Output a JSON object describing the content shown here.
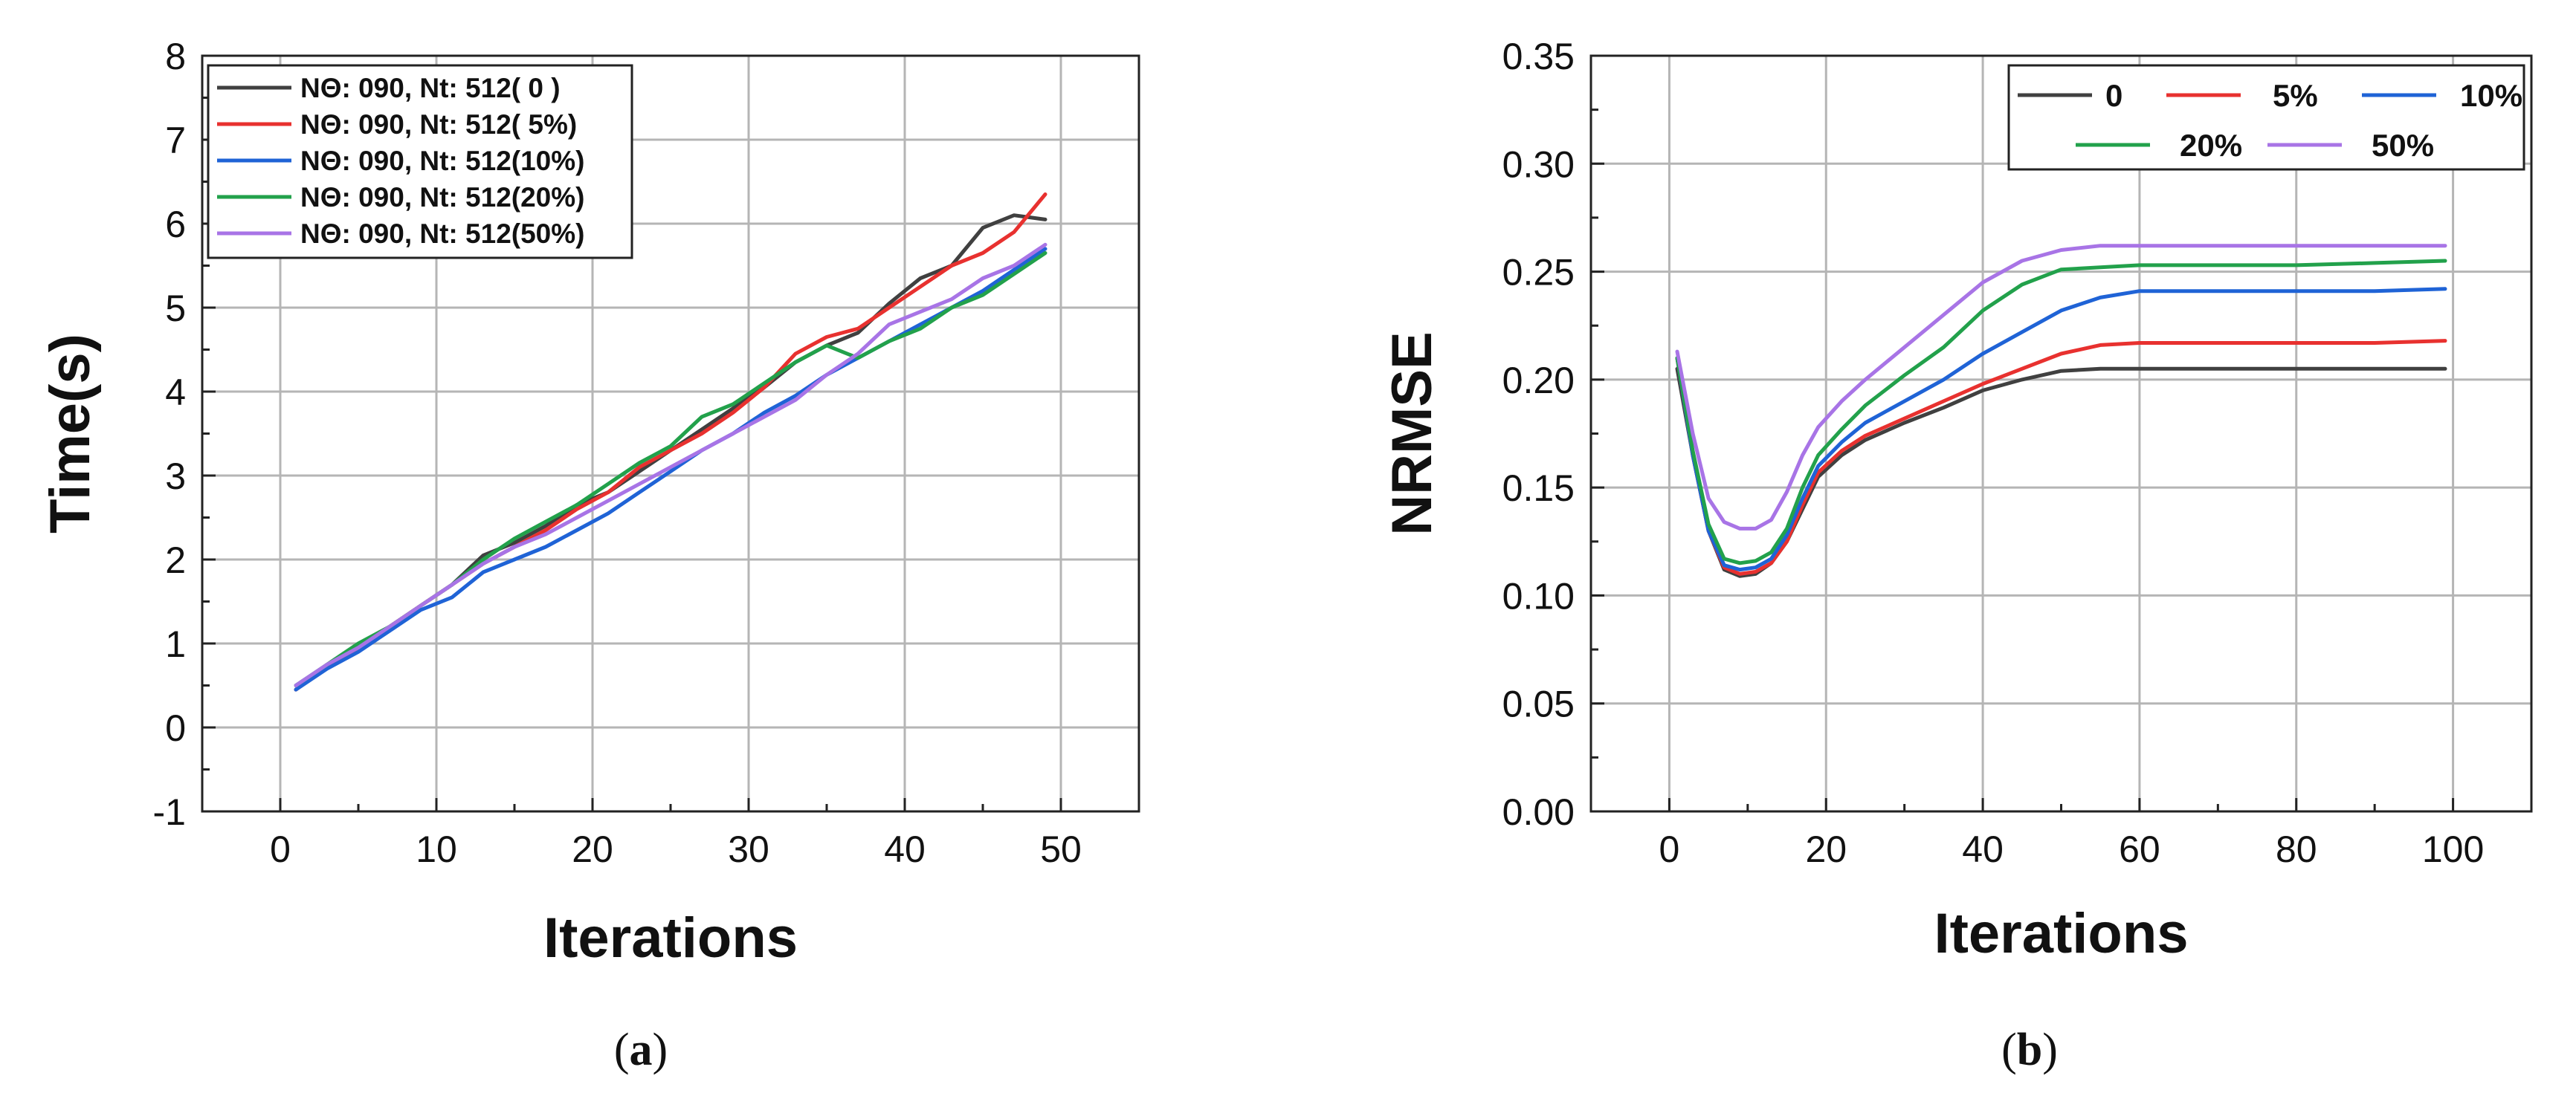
{
  "chart_data": [
    {
      "type": "line",
      "panel": "a",
      "xlabel": "Iterations",
      "ylabel": "Time(s)",
      "xlim": [
        -5,
        55
      ],
      "ylim": [
        -1,
        8
      ],
      "xticks": [
        "0",
        "10",
        "20",
        "30",
        "40",
        "50"
      ],
      "xtick_values": [
        0,
        10,
        20,
        30,
        40,
        50
      ],
      "yticks": [
        "-1",
        "0",
        "1",
        "2",
        "3",
        "4",
        "5",
        "6",
        "7",
        "8"
      ],
      "ytick_values": [
        -1,
        0,
        1,
        2,
        3,
        4,
        5,
        6,
        7,
        8
      ],
      "grid": true,
      "legend_position": "top-left",
      "series": [
        {
          "name": "NΘ: 090, Nt: 512( 0 )",
          "color": "#404040",
          "x": [
            1,
            3,
            5,
            7,
            9,
            11,
            13,
            15,
            17,
            19,
            21,
            23,
            25,
            27,
            29,
            31,
            33,
            35,
            37,
            39,
            41,
            43,
            45,
            47,
            49
          ],
          "y": [
            0.45,
            0.75,
            0.95,
            1.2,
            1.45,
            1.7,
            2.05,
            2.2,
            2.4,
            2.65,
            2.8,
            3.05,
            3.3,
            3.55,
            3.8,
            4.05,
            4.35,
            4.55,
            4.7,
            5.05,
            5.35,
            5.5,
            5.95,
            6.1,
            6.05
          ]
        },
        {
          "name": "NΘ: 090, Nt: 512( 5%)",
          "color": "#e8312f",
          "x": [
            1,
            3,
            5,
            7,
            9,
            11,
            13,
            15,
            17,
            19,
            21,
            23,
            25,
            27,
            29,
            31,
            33,
            35,
            37,
            39,
            41,
            43,
            45,
            47,
            49
          ],
          "y": [
            0.45,
            0.72,
            0.95,
            1.2,
            1.45,
            1.7,
            1.95,
            2.15,
            2.35,
            2.6,
            2.8,
            3.1,
            3.3,
            3.5,
            3.75,
            4.05,
            4.45,
            4.65,
            4.75,
            5.0,
            5.25,
            5.5,
            5.65,
            5.9,
            6.35
          ]
        },
        {
          "name": "NΘ: 090, Nt: 512(10%)",
          "color": "#1f63d6",
          "x": [
            1,
            3,
            5,
            7,
            9,
            11,
            13,
            15,
            17,
            19,
            21,
            23,
            25,
            27,
            29,
            31,
            33,
            35,
            37,
            39,
            41,
            43,
            45,
            47,
            49
          ],
          "y": [
            0.45,
            0.7,
            0.9,
            1.15,
            1.4,
            1.55,
            1.85,
            2.0,
            2.15,
            2.35,
            2.55,
            2.8,
            3.05,
            3.3,
            3.5,
            3.75,
            3.95,
            4.2,
            4.4,
            4.6,
            4.8,
            5.0,
            5.2,
            5.45,
            5.7
          ]
        },
        {
          "name": "NΘ: 090, Nt: 512(20%)",
          "color": "#22a14b",
          "x": [
            1,
            3,
            5,
            7,
            9,
            11,
            13,
            15,
            17,
            19,
            21,
            23,
            25,
            27,
            29,
            31,
            33,
            35,
            37,
            39,
            41,
            43,
            45,
            47,
            49
          ],
          "y": [
            0.5,
            0.75,
            1.0,
            1.2,
            1.45,
            1.7,
            2.0,
            2.25,
            2.45,
            2.65,
            2.9,
            3.15,
            3.35,
            3.7,
            3.85,
            4.1,
            4.35,
            4.55,
            4.4,
            4.6,
            4.75,
            5.0,
            5.15,
            5.4,
            5.65
          ]
        },
        {
          "name": "NΘ: 090, Nt: 512(50%)",
          "color": "#a874e6",
          "x": [
            1,
            3,
            5,
            7,
            9,
            11,
            13,
            15,
            17,
            19,
            21,
            23,
            25,
            27,
            29,
            31,
            33,
            35,
            37,
            39,
            41,
            43,
            45,
            47,
            49
          ],
          "y": [
            0.5,
            0.75,
            0.95,
            1.2,
            1.45,
            1.7,
            1.95,
            2.15,
            2.3,
            2.5,
            2.7,
            2.9,
            3.1,
            3.3,
            3.5,
            3.7,
            3.9,
            4.2,
            4.45,
            4.8,
            4.95,
            5.1,
            5.35,
            5.5,
            5.75
          ]
        }
      ]
    },
    {
      "type": "line",
      "panel": "b",
      "xlabel": "Iterations",
      "ylabel": "NRMSE",
      "xlim": [
        -10,
        110
      ],
      "ylim": [
        0,
        0.35
      ],
      "xticks": [
        "0",
        "20",
        "40",
        "60",
        "80",
        "100"
      ],
      "xtick_values": [
        0,
        20,
        40,
        60,
        80,
        100
      ],
      "yticks": [
        "0.00",
        "0.05",
        "0.10",
        "0.15",
        "0.20",
        "0.25",
        "0.30",
        "0.35"
      ],
      "ytick_values": [
        0,
        0.05,
        0.1,
        0.15,
        0.2,
        0.25,
        0.3,
        0.35
      ],
      "grid": true,
      "legend_position": "top-right",
      "series": [
        {
          "name": "0",
          "color": "#404040",
          "x": [
            1,
            3,
            5,
            7,
            9,
            11,
            13,
            15,
            17,
            19,
            22,
            25,
            30,
            35,
            40,
            45,
            50,
            55,
            60,
            70,
            80,
            90,
            99
          ],
          "y": [
            0.205,
            0.165,
            0.13,
            0.112,
            0.109,
            0.11,
            0.115,
            0.125,
            0.14,
            0.155,
            0.165,
            0.172,
            0.18,
            0.187,
            0.195,
            0.2,
            0.204,
            0.205,
            0.205,
            0.205,
            0.205,
            0.205,
            0.205
          ]
        },
        {
          "name": "5%",
          "color": "#e8312f",
          "x": [
            1,
            3,
            5,
            7,
            9,
            11,
            13,
            15,
            17,
            19,
            22,
            25,
            30,
            35,
            40,
            45,
            50,
            55,
            60,
            70,
            80,
            90,
            99
          ],
          "y": [
            0.21,
            0.165,
            0.13,
            0.113,
            0.11,
            0.111,
            0.115,
            0.125,
            0.142,
            0.157,
            0.167,
            0.174,
            0.182,
            0.19,
            0.198,
            0.205,
            0.212,
            0.216,
            0.217,
            0.217,
            0.217,
            0.217,
            0.218
          ]
        },
        {
          "name": "10%",
          "color": "#1f63d6",
          "x": [
            1,
            3,
            5,
            7,
            9,
            11,
            13,
            15,
            17,
            19,
            22,
            25,
            30,
            35,
            40,
            45,
            50,
            55,
            60,
            70,
            80,
            90,
            99
          ],
          "y": [
            0.21,
            0.165,
            0.13,
            0.114,
            0.112,
            0.113,
            0.117,
            0.128,
            0.145,
            0.16,
            0.171,
            0.18,
            0.19,
            0.2,
            0.212,
            0.222,
            0.232,
            0.238,
            0.241,
            0.241,
            0.241,
            0.241,
            0.242
          ]
        },
        {
          "name": "20%",
          "color": "#22a14b",
          "x": [
            1,
            3,
            5,
            7,
            9,
            11,
            13,
            15,
            17,
            19,
            22,
            25,
            30,
            35,
            40,
            45,
            50,
            55,
            60,
            70,
            80,
            90,
            99
          ],
          "y": [
            0.21,
            0.167,
            0.133,
            0.117,
            0.115,
            0.116,
            0.12,
            0.131,
            0.15,
            0.165,
            0.177,
            0.188,
            0.202,
            0.215,
            0.232,
            0.244,
            0.251,
            0.252,
            0.253,
            0.253,
            0.253,
            0.254,
            0.255
          ]
        },
        {
          "name": "50%",
          "color": "#a874e6",
          "x": [
            1,
            3,
            5,
            7,
            9,
            11,
            13,
            15,
            17,
            19,
            22,
            25,
            30,
            35,
            40,
            45,
            50,
            55,
            60,
            70,
            80,
            90,
            99
          ],
          "y": [
            0.213,
            0.175,
            0.145,
            0.134,
            0.131,
            0.131,
            0.135,
            0.148,
            0.165,
            0.178,
            0.19,
            0.2,
            0.215,
            0.23,
            0.245,
            0.255,
            0.26,
            0.262,
            0.262,
            0.262,
            0.262,
            0.262,
            0.262
          ]
        }
      ]
    }
  ],
  "captions": {
    "a": "(a)",
    "b": "(b)"
  }
}
